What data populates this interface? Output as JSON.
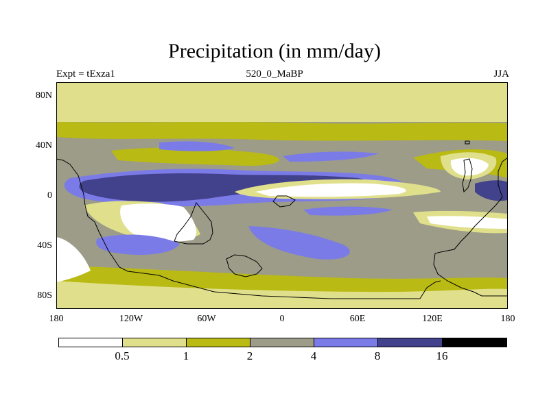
{
  "title": "Precipitation (in mm/day)",
  "subtitle": {
    "left": "Expt = tExza1",
    "center": "520_0_MaBP",
    "right": "JJA"
  },
  "y_ticks": [
    "80N",
    "40N",
    "0",
    "40S",
    "80S"
  ],
  "x_ticks": [
    "180",
    "120W",
    "60W",
    "0",
    "60E",
    "120E",
    "180"
  ],
  "colorbar": {
    "labels": [
      "0.5",
      "1",
      "2",
      "4",
      "8",
      "16"
    ],
    "colors": [
      "#ffffff",
      "#e0e08c",
      "#baba14",
      "#9c9c88",
      "#7b7be8",
      "#42428c",
      "#000000"
    ]
  }
}
